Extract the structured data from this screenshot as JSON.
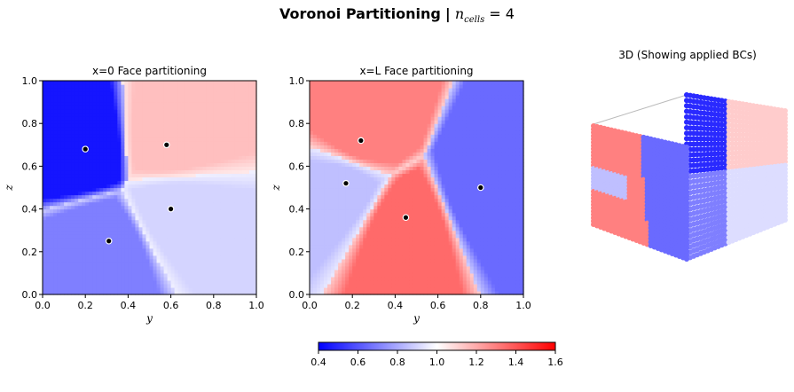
{
  "figure": {
    "title_bold": "Voronoi Partitioning",
    "title_sep": "|",
    "title_math_var": "n",
    "title_math_sub": "cells",
    "title_math_eq": "= 4"
  },
  "colorbar": {
    "ticks": [
      "0.4",
      "0.6",
      "0.8",
      "1.0",
      "1.2",
      "1.4",
      "1.6"
    ],
    "range": [
      0.4,
      1.6
    ],
    "colormap": "bwr"
  },
  "chart_data": [
    {
      "type": "heatmap",
      "title": "x=0 Face partitioning",
      "xlabel": "y",
      "ylabel": "z",
      "xlim": [
        0.0,
        1.0
      ],
      "ylim": [
        0.0,
        1.0
      ],
      "xticks": [
        "0.0",
        "0.2",
        "0.4",
        "0.6",
        "0.8",
        "1.0"
      ],
      "yticks": [
        "0.0",
        "0.2",
        "0.4",
        "0.6",
        "0.8",
        "1.0"
      ],
      "seeds": [
        {
          "y": 0.2,
          "z": 0.68,
          "value": 0.45
        },
        {
          "y": 0.58,
          "z": 0.7,
          "value": 1.15
        },
        {
          "y": 0.6,
          "z": 0.4,
          "value": 0.9
        },
        {
          "y": 0.31,
          "z": 0.25,
          "value": 0.7
        }
      ]
    },
    {
      "type": "heatmap",
      "title": "x=L Face partitioning",
      "xlabel": "y",
      "ylabel": "z",
      "xlim": [
        0.0,
        1.0
      ],
      "ylim": [
        0.0,
        1.0
      ],
      "xticks": [
        "0.0",
        "0.2",
        "0.4",
        "0.6",
        "0.8",
        "1.0"
      ],
      "yticks": [
        "0.0",
        "0.2",
        "0.4",
        "0.6",
        "0.8",
        "1.0"
      ],
      "seeds": [
        {
          "y": 0.24,
          "z": 0.72,
          "value": 1.3
        },
        {
          "y": 0.17,
          "z": 0.52,
          "value": 0.85
        },
        {
          "y": 0.45,
          "z": 0.36,
          "value": 1.35
        },
        {
          "y": 0.8,
          "z": 0.5,
          "value": 0.65
        }
      ]
    },
    {
      "type": "scatter",
      "title": "3D (Showing applied BCs)"
    }
  ]
}
